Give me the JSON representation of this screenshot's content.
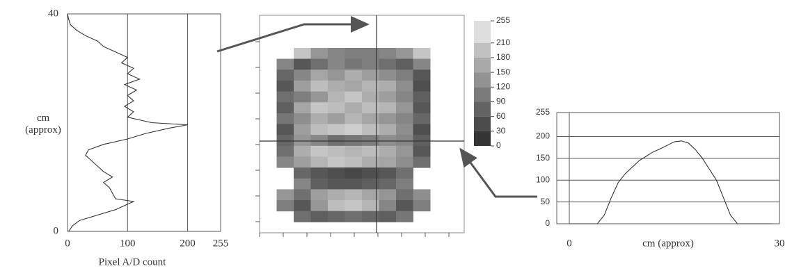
{
  "chart_data": [
    {
      "type": "profile",
      "x_label": "Pixel A/D count",
      "y_label": "cm (approx)",
      "xlim": [
        0,
        255
      ],
      "ylim": [
        0,
        40
      ],
      "xticks": [
        0,
        100,
        200,
        255
      ],
      "yticks": [
        0,
        40
      ],
      "grid": true,
      "color": "#333333",
      "x": [
        2,
        8,
        20,
        50,
        80,
        100,
        110,
        80,
        75,
        70,
        60,
        75,
        60,
        50,
        40,
        30,
        35,
        60,
        100,
        130,
        170,
        200,
        140,
        100,
        110,
        95,
        110,
        100,
        115,
        95,
        120,
        100,
        110,
        90,
        100,
        80,
        60,
        50,
        30,
        15,
        5,
        2,
        0
      ],
      "y": [
        0,
        1,
        2,
        3,
        4,
        5,
        5.5,
        6,
        7,
        8,
        9,
        10,
        11,
        12,
        13,
        14,
        15,
        16,
        17,
        18,
        19,
        19.6,
        20,
        21,
        22,
        23,
        24,
        25,
        26,
        27,
        28,
        29,
        30,
        31,
        32,
        33,
        34,
        35,
        36,
        37,
        38,
        39,
        40
      ]
    },
    {
      "type": "heatmap",
      "colorbar_lim": [
        0,
        255
      ],
      "colorbar_ticks": [
        0,
        30,
        60,
        90,
        120,
        150,
        180,
        210,
        255
      ],
      "values": [
        [
          null,
          null,
          null,
          null,
          null,
          null,
          null,
          null,
          null,
          null,
          null,
          null
        ],
        [
          null,
          null,
          null,
          null,
          null,
          null,
          null,
          null,
          null,
          null,
          null,
          null
        ],
        [
          null,
          null,
          null,
          null,
          null,
          null,
          null,
          null,
          null,
          null,
          null,
          null
        ],
        [
          null,
          null,
          200,
          140,
          120,
          110,
          110,
          120,
          140,
          200,
          null,
          null
        ],
        [
          null,
          120,
          60,
          90,
          120,
          100,
          110,
          90,
          70,
          120,
          null,
          null
        ],
        [
          null,
          80,
          120,
          160,
          140,
          170,
          150,
          130,
          110,
          60,
          null,
          null
        ],
        [
          null,
          60,
          150,
          190,
          170,
          160,
          180,
          170,
          130,
          50,
          null,
          null
        ],
        [
          null,
          90,
          110,
          140,
          180,
          200,
          170,
          150,
          120,
          70,
          null,
          null
        ],
        [
          null,
          70,
          160,
          200,
          190,
          170,
          190,
          180,
          140,
          60,
          null,
          null
        ],
        [
          null,
          100,
          130,
          170,
          150,
          180,
          160,
          140,
          120,
          80,
          null,
          null
        ],
        [
          null,
          60,
          150,
          190,
          200,
          210,
          190,
          170,
          130,
          50,
          null,
          null
        ],
        [
          null,
          80,
          140,
          120,
          90,
          100,
          110,
          130,
          120,
          70,
          null,
          null
        ],
        [
          null,
          90,
          170,
          200,
          190,
          180,
          190,
          170,
          140,
          60,
          null,
          null
        ],
        [
          null,
          120,
          150,
          180,
          200,
          190,
          170,
          160,
          130,
          90,
          null,
          null
        ],
        [
          null,
          null,
          80,
          60,
          50,
          40,
          50,
          60,
          90,
          null,
          null,
          null
        ],
        [
          null,
          null,
          120,
          70,
          60,
          60,
          70,
          80,
          110,
          null,
          null,
          null
        ],
        [
          null,
          140,
          90,
          150,
          170,
          180,
          160,
          140,
          90,
          130,
          null,
          null
        ],
        [
          null,
          110,
          60,
          140,
          190,
          200,
          180,
          120,
          60,
          110,
          null,
          null
        ],
        [
          null,
          null,
          90,
          70,
          80,
          90,
          80,
          70,
          100,
          null,
          null,
          null
        ],
        [
          null,
          null,
          null,
          null,
          null,
          null,
          null,
          null,
          null,
          null,
          null,
          null
        ]
      ]
    },
    {
      "type": "line",
      "x_label": "cm (approx)",
      "xlim": [
        0,
        30
      ],
      "ylim": [
        0,
        255
      ],
      "xticks": [
        0,
        30
      ],
      "yticks": [
        0,
        50,
        100,
        150,
        200,
        255
      ],
      "grid": true,
      "color": "#333333",
      "x": [
        0,
        1,
        2,
        3,
        4,
        5,
        6,
        7,
        8,
        9,
        10,
        11,
        12,
        13,
        14,
        15,
        16,
        17,
        18,
        19,
        20,
        21,
        22,
        23,
        24,
        25,
        26,
        27,
        28,
        29
      ],
      "values": [
        0,
        0,
        0,
        0,
        0,
        20,
        60,
        95,
        115,
        130,
        145,
        155,
        165,
        172,
        180,
        188,
        190,
        185,
        170,
        150,
        125,
        100,
        60,
        20,
        0,
        0,
        0,
        0,
        0,
        0
      ]
    }
  ]
}
